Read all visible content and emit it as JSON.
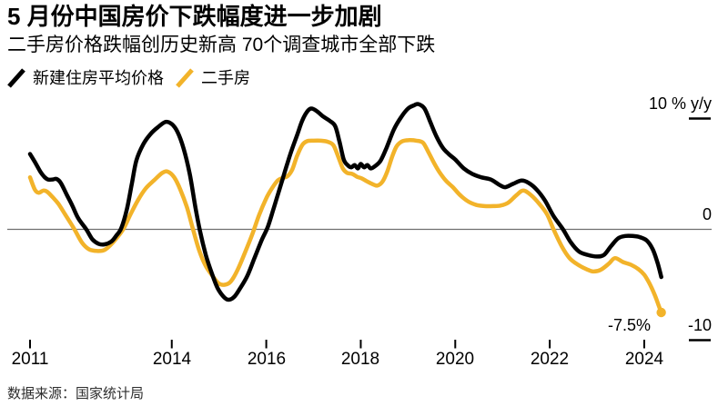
{
  "chart_data": {
    "type": "line",
    "title": "5 月份中国房价下跌幅度进一步加剧",
    "subtitle": "二手房价格跌幅创历史新高 70个调查城市全部下跌",
    "source": "数据来源：国家统计局",
    "unit": "% y/y",
    "xlim": [
      2010.95,
      2024.55
    ],
    "ylim": [
      -10,
      11.5
    ],
    "grid": "zero-baseline-only",
    "legend_position": "top-left",
    "annotation": {
      "text": "-7.5%",
      "series": "二手房",
      "x": 2024.36,
      "y": -7.5
    },
    "y_ticks": [
      {
        "value": 10,
        "label": "10 % y/y",
        "dash": true
      },
      {
        "value": 0,
        "label": "0",
        "dash": false
      },
      {
        "value": -10,
        "label": "-10",
        "dash": true
      }
    ],
    "x_ticks": [
      {
        "value": 2011,
        "label": "2011"
      },
      {
        "value": 2014,
        "label": "2014"
      },
      {
        "value": 2016,
        "label": "2016"
      },
      {
        "value": 2018,
        "label": "2018"
      },
      {
        "value": 2020,
        "label": "2020"
      },
      {
        "value": 2022,
        "label": "2022"
      },
      {
        "value": 2024,
        "label": "2024"
      }
    ],
    "series": [
      {
        "name": "二手房",
        "color": "#F2B32A",
        "end_dot": true,
        "points": [
          [
            2011.0,
            4.7
          ],
          [
            2011.1,
            3.6
          ],
          [
            2011.18,
            3.3
          ],
          [
            2011.28,
            3.5
          ],
          [
            2011.36,
            3.4
          ],
          [
            2011.48,
            2.9
          ],
          [
            2011.6,
            2.3
          ],
          [
            2011.75,
            1.3
          ],
          [
            2011.94,
            0.0
          ],
          [
            2012.1,
            -1.2
          ],
          [
            2012.25,
            -1.8
          ],
          [
            2012.42,
            -1.95
          ],
          [
            2012.58,
            -1.85
          ],
          [
            2012.75,
            -1.2
          ],
          [
            2012.97,
            0.0
          ],
          [
            2013.12,
            1.3
          ],
          [
            2013.28,
            2.6
          ],
          [
            2013.45,
            3.7
          ],
          [
            2013.62,
            4.4
          ],
          [
            2013.8,
            5.1
          ],
          [
            2013.92,
            5.2
          ],
          [
            2014.05,
            4.7
          ],
          [
            2014.18,
            3.6
          ],
          [
            2014.32,
            2.0
          ],
          [
            2014.45,
            0.0
          ],
          [
            2014.58,
            -1.9
          ],
          [
            2014.72,
            -3.3
          ],
          [
            2014.88,
            -4.3
          ],
          [
            2015.0,
            -4.9
          ],
          [
            2015.12,
            -5.0
          ],
          [
            2015.25,
            -4.7
          ],
          [
            2015.4,
            -3.6
          ],
          [
            2015.55,
            -2.1
          ],
          [
            2015.7,
            -0.5
          ],
          [
            2015.85,
            1.3
          ],
          [
            2016.0,
            2.8
          ],
          [
            2016.12,
            3.7
          ],
          [
            2016.24,
            4.4
          ],
          [
            2016.35,
            4.65
          ],
          [
            2016.45,
            4.8
          ],
          [
            2016.55,
            5.4
          ],
          [
            2016.65,
            6.6
          ],
          [
            2016.76,
            7.6
          ],
          [
            2016.86,
            7.95
          ],
          [
            2017.0,
            8.0
          ],
          [
            2017.15,
            8.0
          ],
          [
            2017.3,
            7.9
          ],
          [
            2017.42,
            7.6
          ],
          [
            2017.52,
            6.6
          ],
          [
            2017.62,
            5.5
          ],
          [
            2017.71,
            5.1
          ],
          [
            2017.82,
            5.0
          ],
          [
            2017.92,
            4.75
          ],
          [
            2018.02,
            4.6
          ],
          [
            2018.12,
            4.35
          ],
          [
            2018.24,
            4.1
          ],
          [
            2018.35,
            3.95
          ],
          [
            2018.46,
            4.3
          ],
          [
            2018.56,
            5.2
          ],
          [
            2018.66,
            6.5
          ],
          [
            2018.76,
            7.5
          ],
          [
            2018.88,
            7.95
          ],
          [
            2019.02,
            8.05
          ],
          [
            2019.18,
            8.0
          ],
          [
            2019.32,
            7.8
          ],
          [
            2019.44,
            6.9
          ],
          [
            2019.55,
            6.0
          ],
          [
            2019.66,
            5.2
          ],
          [
            2019.8,
            4.4
          ],
          [
            2019.95,
            3.8
          ],
          [
            2020.1,
            3.1
          ],
          [
            2020.28,
            2.5
          ],
          [
            2020.45,
            2.2
          ],
          [
            2020.62,
            2.1
          ],
          [
            2020.8,
            2.1
          ],
          [
            2020.96,
            2.15
          ],
          [
            2021.12,
            2.4
          ],
          [
            2021.3,
            3.1
          ],
          [
            2021.44,
            3.5
          ],
          [
            2021.6,
            3.1
          ],
          [
            2021.8,
            2.2
          ],
          [
            2021.95,
            1.3
          ],
          [
            2022.08,
            0.0
          ],
          [
            2022.25,
            -1.5
          ],
          [
            2022.42,
            -2.6
          ],
          [
            2022.6,
            -3.2
          ],
          [
            2022.78,
            -3.6
          ],
          [
            2022.92,
            -3.8
          ],
          [
            2023.08,
            -3.65
          ],
          [
            2023.25,
            -3.1
          ],
          [
            2023.38,
            -2.6
          ],
          [
            2023.55,
            -2.95
          ],
          [
            2023.72,
            -3.2
          ],
          [
            2023.88,
            -3.6
          ],
          [
            2024.0,
            -4.1
          ],
          [
            2024.1,
            -4.8
          ],
          [
            2024.22,
            -5.9
          ],
          [
            2024.3,
            -6.8
          ],
          [
            2024.36,
            -7.5
          ]
        ]
      },
      {
        "name": "新建住房平均价格",
        "color": "#000000",
        "end_dot": false,
        "points": [
          [
            2011.0,
            6.8
          ],
          [
            2011.1,
            6.1
          ],
          [
            2011.22,
            5.2
          ],
          [
            2011.3,
            4.75
          ],
          [
            2011.38,
            4.5
          ],
          [
            2011.48,
            4.5
          ],
          [
            2011.56,
            4.55
          ],
          [
            2011.65,
            4.2
          ],
          [
            2011.78,
            3.1
          ],
          [
            2011.9,
            2.1
          ],
          [
            2012.02,
            1.0
          ],
          [
            2012.19,
            0.0
          ],
          [
            2012.32,
            -0.9
          ],
          [
            2012.45,
            -1.3
          ],
          [
            2012.58,
            -1.35
          ],
          [
            2012.72,
            -1.1
          ],
          [
            2012.82,
            -0.6
          ],
          [
            2012.93,
            0.1
          ],
          [
            2013.05,
            1.8
          ],
          [
            2013.15,
            4.0
          ],
          [
            2013.25,
            6.2
          ],
          [
            2013.4,
            7.7
          ],
          [
            2013.55,
            8.6
          ],
          [
            2013.7,
            9.2
          ],
          [
            2013.87,
            9.7
          ],
          [
            2014.0,
            9.5
          ],
          [
            2014.12,
            8.8
          ],
          [
            2014.25,
            7.3
          ],
          [
            2014.38,
            5.0
          ],
          [
            2014.5,
            2.0
          ],
          [
            2014.6,
            -0.2
          ],
          [
            2014.72,
            -2.3
          ],
          [
            2014.85,
            -4.0
          ],
          [
            2014.97,
            -5.3
          ],
          [
            2015.1,
            -6.1
          ],
          [
            2015.2,
            -6.35
          ],
          [
            2015.32,
            -6.1
          ],
          [
            2015.45,
            -5.3
          ],
          [
            2015.6,
            -4.2
          ],
          [
            2015.75,
            -2.6
          ],
          [
            2015.9,
            -1.0
          ],
          [
            2016.03,
            0.2
          ],
          [
            2016.15,
            1.8
          ],
          [
            2016.25,
            3.2
          ],
          [
            2016.35,
            4.6
          ],
          [
            2016.45,
            6.0
          ],
          [
            2016.55,
            7.3
          ],
          [
            2016.66,
            8.6
          ],
          [
            2016.76,
            9.8
          ],
          [
            2016.86,
            10.6
          ],
          [
            2016.95,
            10.9
          ],
          [
            2017.06,
            10.7
          ],
          [
            2017.2,
            10.2
          ],
          [
            2017.34,
            9.8
          ],
          [
            2017.46,
            9.3
          ],
          [
            2017.55,
            7.9
          ],
          [
            2017.64,
            6.3
          ],
          [
            2017.72,
            5.8
          ],
          [
            2017.8,
            5.6
          ],
          [
            2017.87,
            5.8
          ],
          [
            2017.94,
            5.5
          ],
          [
            2018.0,
            5.9
          ],
          [
            2018.07,
            5.6
          ],
          [
            2018.14,
            5.8
          ],
          [
            2018.21,
            5.5
          ],
          [
            2018.3,
            5.7
          ],
          [
            2018.42,
            6.2
          ],
          [
            2018.55,
            7.4
          ],
          [
            2018.7,
            9.0
          ],
          [
            2018.85,
            10.1
          ],
          [
            2019.0,
            10.9
          ],
          [
            2019.13,
            11.2
          ],
          [
            2019.22,
            11.3
          ],
          [
            2019.35,
            10.9
          ],
          [
            2019.48,
            9.6
          ],
          [
            2019.6,
            8.4
          ],
          [
            2019.73,
            7.4
          ],
          [
            2019.86,
            6.8
          ],
          [
            2020.0,
            6.3
          ],
          [
            2020.18,
            5.5
          ],
          [
            2020.36,
            5.0
          ],
          [
            2020.55,
            4.7
          ],
          [
            2020.75,
            4.5
          ],
          [
            2020.94,
            4.0
          ],
          [
            2021.06,
            3.8
          ],
          [
            2021.22,
            4.1
          ],
          [
            2021.4,
            4.4
          ],
          [
            2021.55,
            4.2
          ],
          [
            2021.72,
            3.6
          ],
          [
            2021.9,
            2.6
          ],
          [
            2022.08,
            1.2
          ],
          [
            2022.28,
            0.0
          ],
          [
            2022.45,
            -1.2
          ],
          [
            2022.62,
            -2.0
          ],
          [
            2022.8,
            -2.3
          ],
          [
            2023.0,
            -2.45
          ],
          [
            2023.15,
            -2.3
          ],
          [
            2023.3,
            -1.5
          ],
          [
            2023.45,
            -0.8
          ],
          [
            2023.6,
            -0.6
          ],
          [
            2023.75,
            -0.6
          ],
          [
            2023.9,
            -0.7
          ],
          [
            2024.05,
            -1.0
          ],
          [
            2024.18,
            -1.8
          ],
          [
            2024.28,
            -3.0
          ],
          [
            2024.36,
            -4.3
          ]
        ]
      }
    ],
    "colors": {
      "zero_line": "#6f6f6f",
      "tick": "#000000",
      "background": "#FFFFFF"
    }
  }
}
